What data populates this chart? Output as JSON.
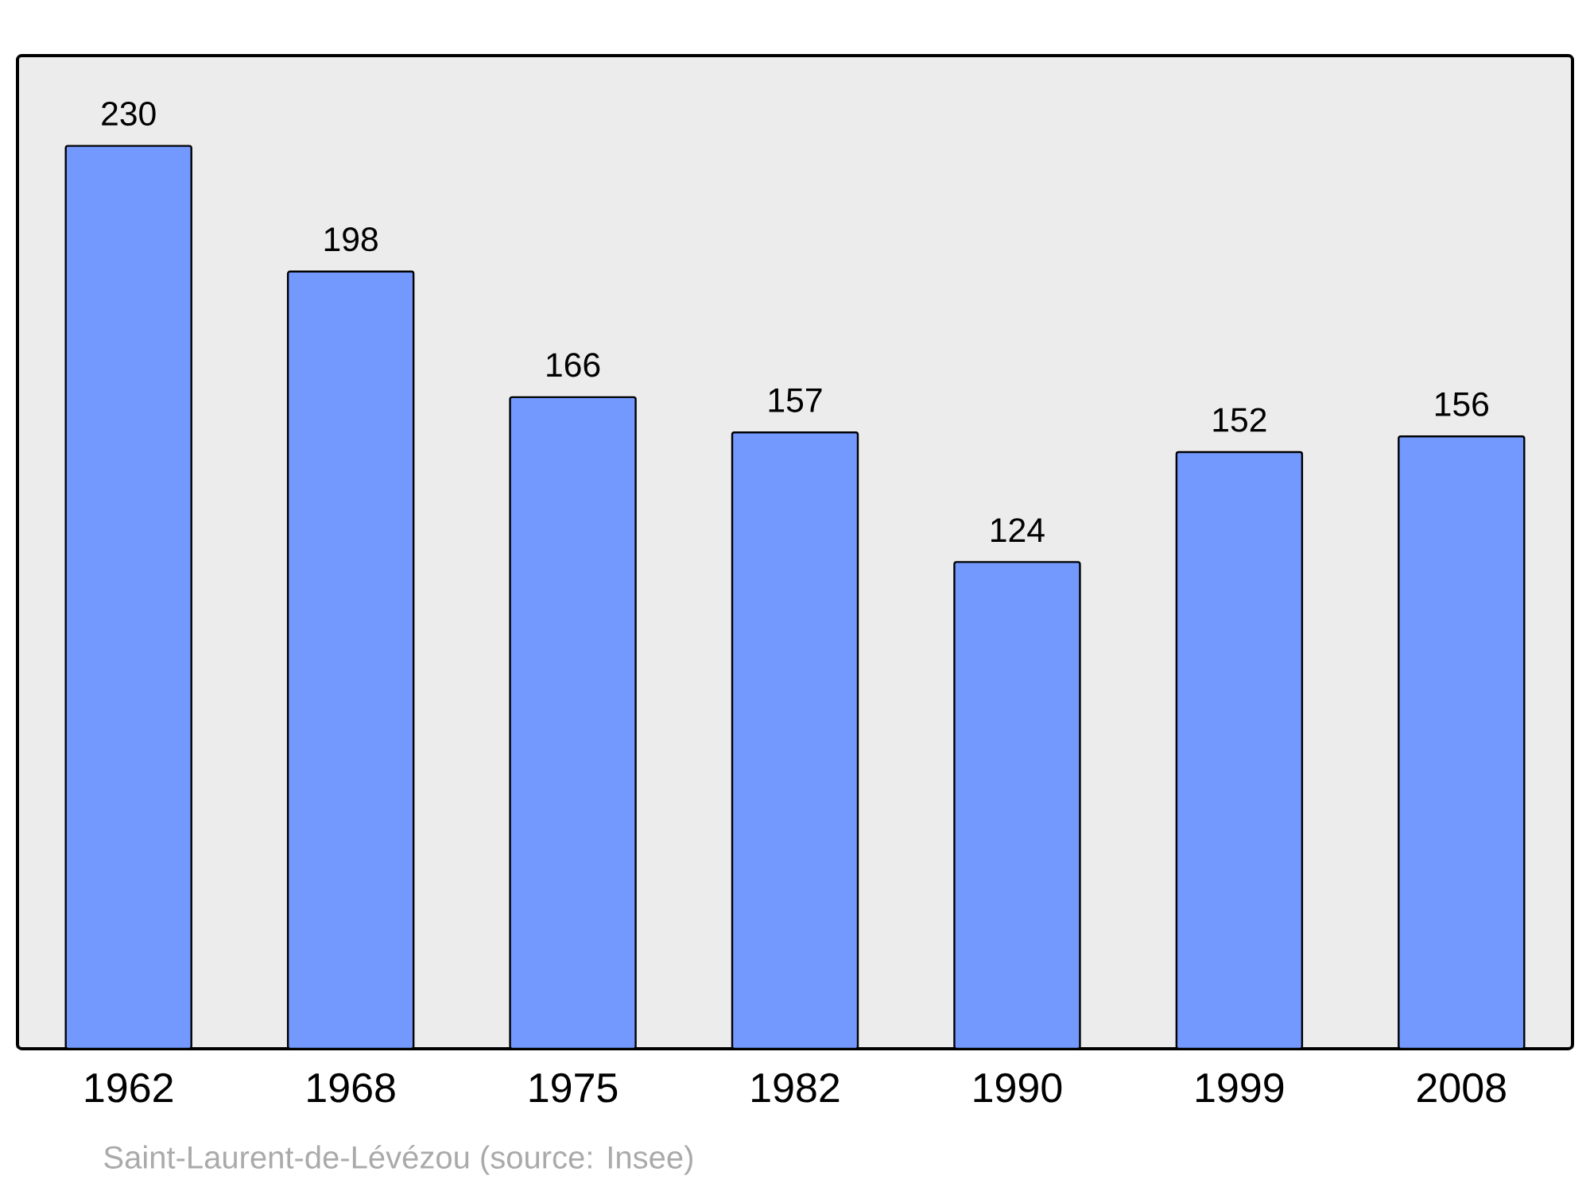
{
  "chart_data": {
    "type": "bar",
    "categories": [
      "1962",
      "1968",
      "1975",
      "1982",
      "1990",
      "1999",
      "2008"
    ],
    "values": [
      230,
      198,
      166,
      157,
      124,
      152,
      156
    ],
    "color": "#7399ff",
    "data_labels": true,
    "annotations": [
      "Saint-Laurent-de-Lévézou (source: Insee)"
    ]
  }
}
